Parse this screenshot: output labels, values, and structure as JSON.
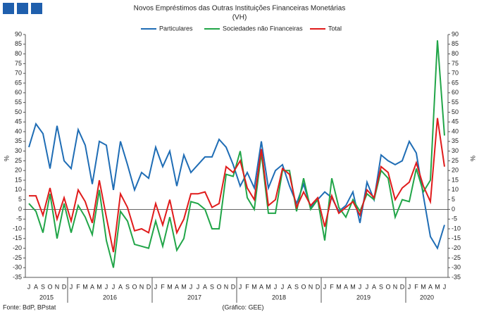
{
  "chart_data": {
    "type": "line",
    "title": "Novos Empréstimos das Outras Instituições Financeiras Monetárias",
    "subtitle": "(VH)",
    "y_label": "%",
    "y2_label": "%",
    "source": "Fonte: BdP, BPstat",
    "note": "(Gráfico: GEE)",
    "category_groups": [
      {
        "label": "2015",
        "categories": [
          "J",
          "A",
          "S",
          "O",
          "N",
          "D"
        ]
      },
      {
        "label": "2016",
        "categories": [
          "J",
          "F",
          "M",
          "A",
          "M",
          "J",
          "J",
          "A",
          "S",
          "O",
          "N",
          "D"
        ]
      },
      {
        "label": "2017",
        "categories": [
          "J",
          "F",
          "M",
          "A",
          "M",
          "J",
          "J",
          "A",
          "S",
          "O",
          "N",
          "D"
        ]
      },
      {
        "label": "2018",
        "categories": [
          "J",
          "F",
          "M",
          "A",
          "M",
          "J",
          "J",
          "A",
          "S",
          "O",
          "N",
          "D"
        ]
      },
      {
        "label": "2019",
        "categories": [
          "J",
          "F",
          "M",
          "A",
          "M",
          "J",
          "J",
          "A",
          "S",
          "O",
          "N",
          "D"
        ]
      },
      {
        "label": "2020",
        "categories": [
          "J",
          "F",
          "M",
          "A",
          "M",
          "J"
        ]
      }
    ],
    "series": [
      {
        "name": "Particulares",
        "color": "#1f6db5",
        "values": [
          32,
          44,
          39,
          21,
          43,
          25,
          21,
          41,
          33,
          13,
          35,
          33,
          10,
          35,
          23,
          10,
          19,
          16,
          32,
          22,
          30,
          12,
          28,
          19,
          23,
          27,
          27,
          36,
          32,
          23,
          12,
          19,
          11,
          35,
          11,
          20,
          23,
          12,
          3,
          13,
          1,
          5,
          9,
          6,
          -1,
          2,
          9,
          -7,
          14,
          5,
          28,
          25,
          23,
          25,
          35,
          29,
          7,
          -14,
          -20,
          -8
        ]
      },
      {
        "name": "Sociedades não Financeiras",
        "color": "#21a548",
        "values": [
          3,
          -1,
          -12,
          8,
          -15,
          3,
          -12,
          2,
          -4,
          -13,
          10,
          -16,
          -30,
          -1,
          -6,
          -18,
          -19,
          -20,
          -6,
          -19,
          -4,
          -21,
          -15,
          4,
          3,
          0,
          -10,
          -10,
          18,
          17,
          30,
          6,
          0,
          29,
          -2,
          -2,
          20,
          20,
          -1,
          16,
          0,
          5,
          -16,
          16,
          1,
          -4,
          5,
          -1,
          8,
          5,
          20,
          16,
          -4,
          5,
          4,
          21,
          9,
          15,
          87,
          38
        ]
      },
      {
        "name": "Total",
        "color": "#e01b1b",
        "values": [
          7,
          7,
          -3,
          11,
          -5,
          6,
          -6,
          10,
          4,
          -7,
          15,
          -4,
          -22,
          8,
          1,
          -11,
          -10,
          -12,
          3,
          -8,
          5,
          -12,
          -5,
          8,
          8,
          9,
          1,
          3,
          22,
          19,
          25,
          11,
          5,
          31,
          2,
          5,
          21,
          18,
          1,
          9,
          2,
          6,
          -9,
          7,
          -2,
          1,
          4,
          -3,
          10,
          6,
          22,
          19,
          5,
          11,
          14,
          24,
          12,
          4,
          47,
          22
        ]
      }
    ],
    "ylim": [
      -35,
      90
    ],
    "yticks": [
      -35,
      -30,
      -25,
      -20,
      -15,
      -10,
      -5,
      0,
      5,
      10,
      15,
      20,
      25,
      30,
      35,
      40,
      45,
      50,
      55,
      60,
      65,
      70,
      75,
      80,
      85,
      90
    ],
    "legend": "top"
  }
}
